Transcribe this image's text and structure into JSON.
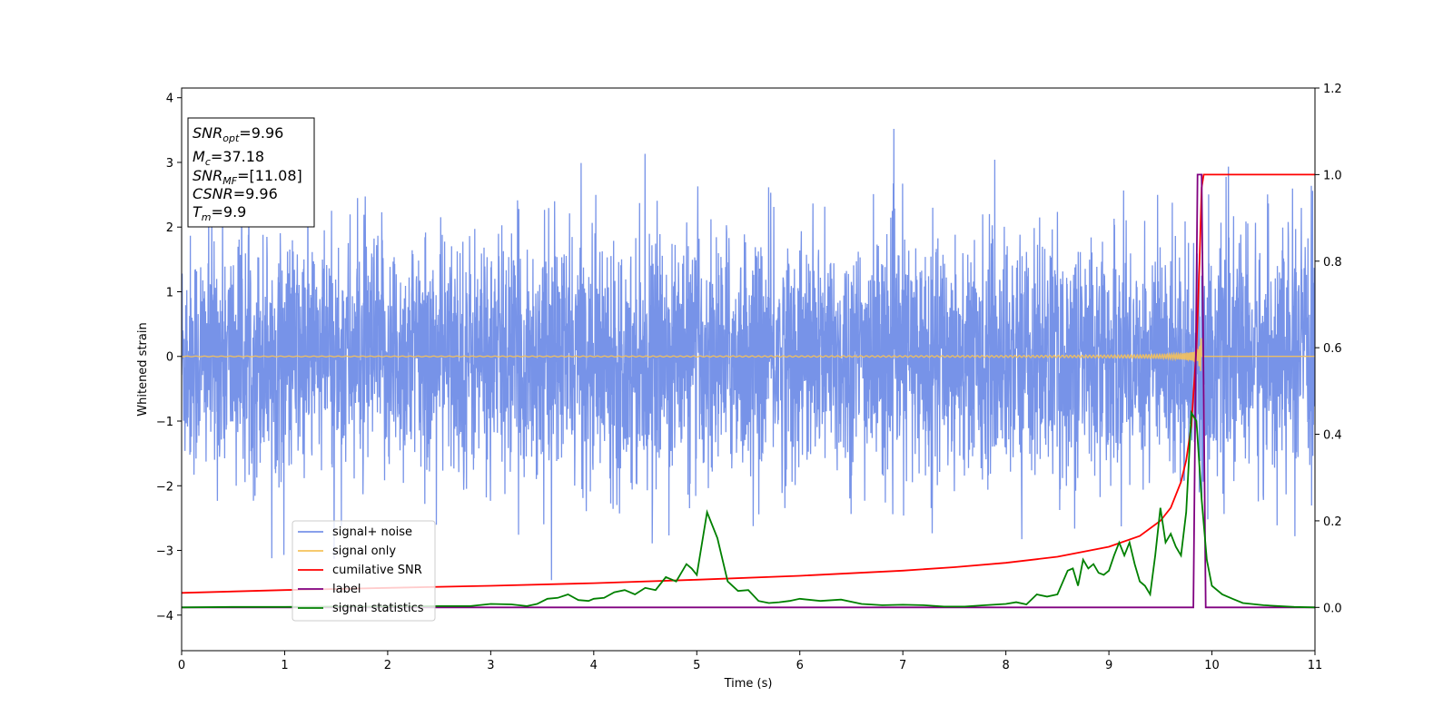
{
  "colors": {
    "noise": "#7793e8",
    "signal": "#f5c25a",
    "cumulative": "#ff0000",
    "label": "#800080",
    "statistics": "#008000"
  },
  "annotation": {
    "line1_label": "SNR",
    "line1_sub": "opt",
    "line1_value": "=9.96",
    "line2_label": "M",
    "line2_sub": "c",
    "line2_value": "=37.18",
    "line3_label": "SNR",
    "line3_sub": "MF",
    "line3_value": "=[11.08]",
    "line4_label": "CSNR",
    "line4_value": "=9.96",
    "line5_label": "T",
    "line5_sub": "m",
    "line5_value": "=9.9"
  },
  "chart_data": {
    "type": "line",
    "xlabel": "Time (s)",
    "ylabel": "Whitened strain",
    "xlim": [
      0,
      11
    ],
    "ylim": [
      -4.55,
      4.15
    ],
    "y2lim": [
      -0.1,
      1.2
    ],
    "x_ticks": [
      "0",
      "1",
      "2",
      "3",
      "4",
      "5",
      "6",
      "7",
      "8",
      "9",
      "10",
      "11"
    ],
    "y_ticks": [
      "4",
      "3",
      "2",
      "1",
      "0",
      "−1",
      "−2",
      "−3",
      "−4"
    ],
    "y_tick_values": [
      4,
      3,
      2,
      1,
      0,
      -1,
      -2,
      -3,
      -4
    ],
    "y2_ticks": [
      "1.2",
      "1.0",
      "0.8",
      "0.6",
      "0.4",
      "0.2",
      "0.0"
    ],
    "y2_tick_values": [
      1.2,
      1.0,
      0.8,
      0.6,
      0.4,
      0.2,
      0.0
    ],
    "grid": false,
    "legend_position": "lower-left",
    "series": [
      {
        "name": "signal+ noise",
        "axis": "left",
        "note": "whitened noise, amplitude roughly ±2.5 with peaks to 3.8 / -3.5"
      },
      {
        "name": "signal only",
        "axis": "left",
        "note": "chirp, amplitude growing from ~0 to ~0.6 near t=9.9, then 0"
      },
      {
        "name": "cumilative SNR",
        "axis": "right",
        "x": [
          0,
          1,
          2,
          3,
          4,
          5,
          6,
          7,
          7.5,
          8,
          8.5,
          9,
          9.3,
          9.5,
          9.6,
          9.7,
          9.75,
          9.8,
          9.85,
          9.88,
          9.9,
          9.92,
          11
        ],
        "y": [
          0.0335,
          0.04,
          0.045,
          0.05,
          0.056,
          0.064,
          0.073,
          0.085,
          0.093,
          0.103,
          0.117,
          0.14,
          0.165,
          0.2,
          0.23,
          0.29,
          0.34,
          0.42,
          0.6,
          0.8,
          0.97,
          1.0,
          1.0
        ]
      },
      {
        "name": "label",
        "axis": "right",
        "x": [
          0,
          9.82,
          9.86,
          9.9,
          9.94,
          11
        ],
        "y": [
          0,
          0,
          1.0,
          1.0,
          0,
          0
        ]
      },
      {
        "name": "signal statistics",
        "axis": "right",
        "x": [
          0,
          0.5,
          1,
          1.5,
          2,
          2.5,
          2.8,
          3,
          3.2,
          3.35,
          3.45,
          3.55,
          3.65,
          3.75,
          3.85,
          3.95,
          4.0,
          4.1,
          4.2,
          4.3,
          4.4,
          4.5,
          4.6,
          4.7,
          4.8,
          4.9,
          4.95,
          5.0,
          5.1,
          5.2,
          5.3,
          5.4,
          5.5,
          5.6,
          5.7,
          5.8,
          5.9,
          6.0,
          6.2,
          6.4,
          6.6,
          6.8,
          7.0,
          7.2,
          7.4,
          7.6,
          7.8,
          8.0,
          8.1,
          8.2,
          8.3,
          8.4,
          8.5,
          8.6,
          8.65,
          8.7,
          8.75,
          8.8,
          8.85,
          8.9,
          8.95,
          9.0,
          9.05,
          9.1,
          9.15,
          9.2,
          9.25,
          9.3,
          9.35,
          9.4,
          9.45,
          9.5,
          9.55,
          9.6,
          9.65,
          9.7,
          9.75,
          9.8,
          9.85,
          9.9,
          9.95,
          10.0,
          10.1,
          10.2,
          10.3,
          10.5,
          10.8,
          11.0
        ],
        "y": [
          0.0,
          0.001,
          0.001,
          0.002,
          0.002,
          0.003,
          0.003,
          0.008,
          0.007,
          0.003,
          0.008,
          0.02,
          0.022,
          0.03,
          0.017,
          0.015,
          0.02,
          0.022,
          0.035,
          0.04,
          0.03,
          0.045,
          0.04,
          0.07,
          0.06,
          0.1,
          0.09,
          0.075,
          0.22,
          0.16,
          0.06,
          0.038,
          0.04,
          0.015,
          0.01,
          0.012,
          0.015,
          0.02,
          0.015,
          0.018,
          0.008,
          0.005,
          0.006,
          0.005,
          0.002,
          0.002,
          0.005,
          0.008,
          0.012,
          0.007,
          0.03,
          0.025,
          0.03,
          0.085,
          0.09,
          0.05,
          0.11,
          0.09,
          0.1,
          0.08,
          0.075,
          0.085,
          0.12,
          0.15,
          0.12,
          0.15,
          0.1,
          0.06,
          0.05,
          0.03,
          0.12,
          0.23,
          0.15,
          0.17,
          0.14,
          0.12,
          0.22,
          0.45,
          0.43,
          0.25,
          0.11,
          0.05,
          0.03,
          0.02,
          0.01,
          0.005,
          0.001,
          0.0
        ]
      }
    ]
  },
  "legend": {
    "noise": "signal+ noise",
    "signal": "signal only",
    "cumulative": "cumilative SNR",
    "label": "label",
    "statistics": "signal statistics"
  }
}
